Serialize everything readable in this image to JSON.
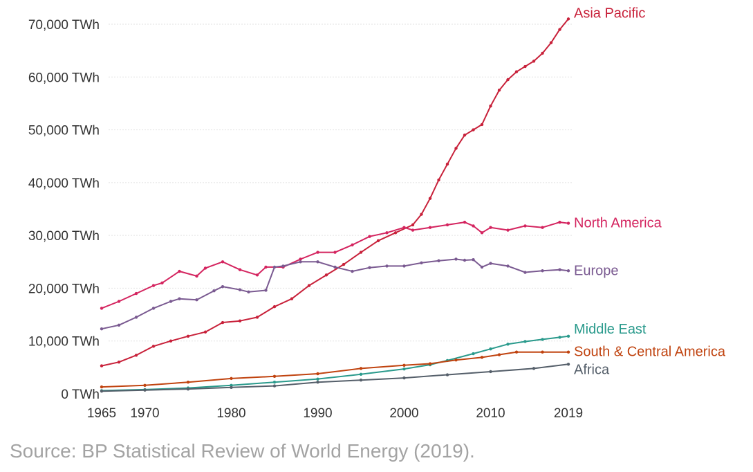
{
  "chart_data": {
    "type": "line",
    "title": "",
    "xlabel": "",
    "ylabel": "",
    "unit_suffix": " TWh",
    "xlim": [
      1965,
      2019
    ],
    "ylim": [
      0,
      70000
    ],
    "grid": true,
    "y_ticks": [
      0,
      10000,
      20000,
      30000,
      40000,
      50000,
      60000,
      70000
    ],
    "y_tick_labels": [
      "0 TWh",
      "10,000 TWh",
      "20,000 TWh",
      "30,000 TWh",
      "40,000 TWh",
      "50,000 TWh",
      "60,000 TWh",
      "70,000 TWh"
    ],
    "x_ticks": [
      1965,
      1970,
      1980,
      1990,
      2000,
      2010,
      2019
    ],
    "x_tick_labels": [
      "1965",
      "1970",
      "1980",
      "1990",
      "2000",
      "2010",
      "2019"
    ],
    "series": [
      {
        "name": "Asia Pacific",
        "color": "#c8213a",
        "points": [
          [
            1965,
            5300
          ],
          [
            1967,
            6000
          ],
          [
            1969,
            7300
          ],
          [
            1971,
            9000
          ],
          [
            1973,
            10000
          ],
          [
            1975,
            10900
          ],
          [
            1977,
            11700
          ],
          [
            1979,
            13500
          ],
          [
            1981,
            13800
          ],
          [
            1983,
            14500
          ],
          [
            1985,
            16500
          ],
          [
            1987,
            18000
          ],
          [
            1989,
            20500
          ],
          [
            1991,
            22500
          ],
          [
            1993,
            24500
          ],
          [
            1995,
            26800
          ],
          [
            1997,
            29000
          ],
          [
            1999,
            30500
          ],
          [
            2001,
            32000
          ],
          [
            2002,
            34000
          ],
          [
            2003,
            37000
          ],
          [
            2004,
            40500
          ],
          [
            2005,
            43500
          ],
          [
            2006,
            46500
          ],
          [
            2007,
            49000
          ],
          [
            2008,
            50000
          ],
          [
            2009,
            51000
          ],
          [
            2010,
            54500
          ],
          [
            2011,
            57500
          ],
          [
            2012,
            59500
          ],
          [
            2013,
            61000
          ],
          [
            2014,
            62000
          ],
          [
            2015,
            63000
          ],
          [
            2016,
            64500
          ],
          [
            2017,
            66500
          ],
          [
            2018,
            69000
          ],
          [
            2019,
            71000
          ]
        ]
      },
      {
        "name": "North America",
        "color": "#d4245f",
        "points": [
          [
            1965,
            16200
          ],
          [
            1967,
            17500
          ],
          [
            1969,
            19000
          ],
          [
            1971,
            20500
          ],
          [
            1972,
            21000
          ],
          [
            1974,
            23200
          ],
          [
            1976,
            22300
          ],
          [
            1977,
            23800
          ],
          [
            1979,
            25000
          ],
          [
            1981,
            23500
          ],
          [
            1983,
            22500
          ],
          [
            1984,
            24000
          ],
          [
            1986,
            24000
          ],
          [
            1988,
            25500
          ],
          [
            1990,
            26800
          ],
          [
            1992,
            26800
          ],
          [
            1994,
            28200
          ],
          [
            1996,
            29800
          ],
          [
            1998,
            30500
          ],
          [
            2000,
            31500
          ],
          [
            2001,
            31000
          ],
          [
            2003,
            31500
          ],
          [
            2005,
            32000
          ],
          [
            2007,
            32500
          ],
          [
            2008,
            31800
          ],
          [
            2009,
            30500
          ],
          [
            2010,
            31500
          ],
          [
            2012,
            31000
          ],
          [
            2014,
            31800
          ],
          [
            2016,
            31500
          ],
          [
            2018,
            32500
          ],
          [
            2019,
            32300
          ]
        ]
      },
      {
        "name": "Europe",
        "color": "#7a5a91",
        "points": [
          [
            1965,
            12300
          ],
          [
            1967,
            13000
          ],
          [
            1969,
            14500
          ],
          [
            1971,
            16200
          ],
          [
            1973,
            17500
          ],
          [
            1974,
            18000
          ],
          [
            1976,
            17800
          ],
          [
            1978,
            19500
          ],
          [
            1979,
            20300
          ],
          [
            1981,
            19700
          ],
          [
            1982,
            19300
          ],
          [
            1984,
            19600
          ],
          [
            1985,
            24000
          ],
          [
            1986,
            24200
          ],
          [
            1988,
            25000
          ],
          [
            1990,
            25000
          ],
          [
            1992,
            24000
          ],
          [
            1994,
            23200
          ],
          [
            1996,
            23900
          ],
          [
            1998,
            24200
          ],
          [
            2000,
            24200
          ],
          [
            2002,
            24800
          ],
          [
            2004,
            25200
          ],
          [
            2006,
            25500
          ],
          [
            2007,
            25300
          ],
          [
            2008,
            25400
          ],
          [
            2009,
            24000
          ],
          [
            2010,
            24700
          ],
          [
            2012,
            24200
          ],
          [
            2014,
            23000
          ],
          [
            2016,
            23300
          ],
          [
            2018,
            23500
          ],
          [
            2019,
            23300
          ]
        ]
      },
      {
        "name": "Middle East",
        "color": "#2a9a8c",
        "points": [
          [
            1965,
            600
          ],
          [
            1970,
            800
          ],
          [
            1975,
            1100
          ],
          [
            1980,
            1600
          ],
          [
            1985,
            2200
          ],
          [
            1990,
            2800
          ],
          [
            1995,
            3700
          ],
          [
            2000,
            4700
          ],
          [
            2003,
            5500
          ],
          [
            2005,
            6300
          ],
          [
            2008,
            7600
          ],
          [
            2010,
            8500
          ],
          [
            2012,
            9400
          ],
          [
            2014,
            9900
          ],
          [
            2016,
            10300
          ],
          [
            2018,
            10700
          ],
          [
            2019,
            10900
          ]
        ]
      },
      {
        "name": "South & Central America",
        "color": "#c0430f",
        "points": [
          [
            1965,
            1300
          ],
          [
            1970,
            1600
          ],
          [
            1975,
            2200
          ],
          [
            1980,
            2900
          ],
          [
            1985,
            3300
          ],
          [
            1990,
            3800
          ],
          [
            1995,
            4800
          ],
          [
            2000,
            5400
          ],
          [
            2003,
            5700
          ],
          [
            2006,
            6400
          ],
          [
            2009,
            6900
          ],
          [
            2011,
            7400
          ],
          [
            2013,
            7900
          ],
          [
            2016,
            7900
          ],
          [
            2019,
            7900
          ]
        ]
      },
      {
        "name": "Africa",
        "color": "#555f6a",
        "points": [
          [
            1965,
            500
          ],
          [
            1970,
            700
          ],
          [
            1975,
            900
          ],
          [
            1980,
            1200
          ],
          [
            1985,
            1500
          ],
          [
            1990,
            2200
          ],
          [
            1995,
            2600
          ],
          [
            2000,
            3000
          ],
          [
            2005,
            3600
          ],
          [
            2010,
            4200
          ],
          [
            2015,
            4800
          ],
          [
            2019,
            5600
          ]
        ]
      }
    ]
  },
  "source": "Source: BP Statistical Review of World Energy (2019)."
}
